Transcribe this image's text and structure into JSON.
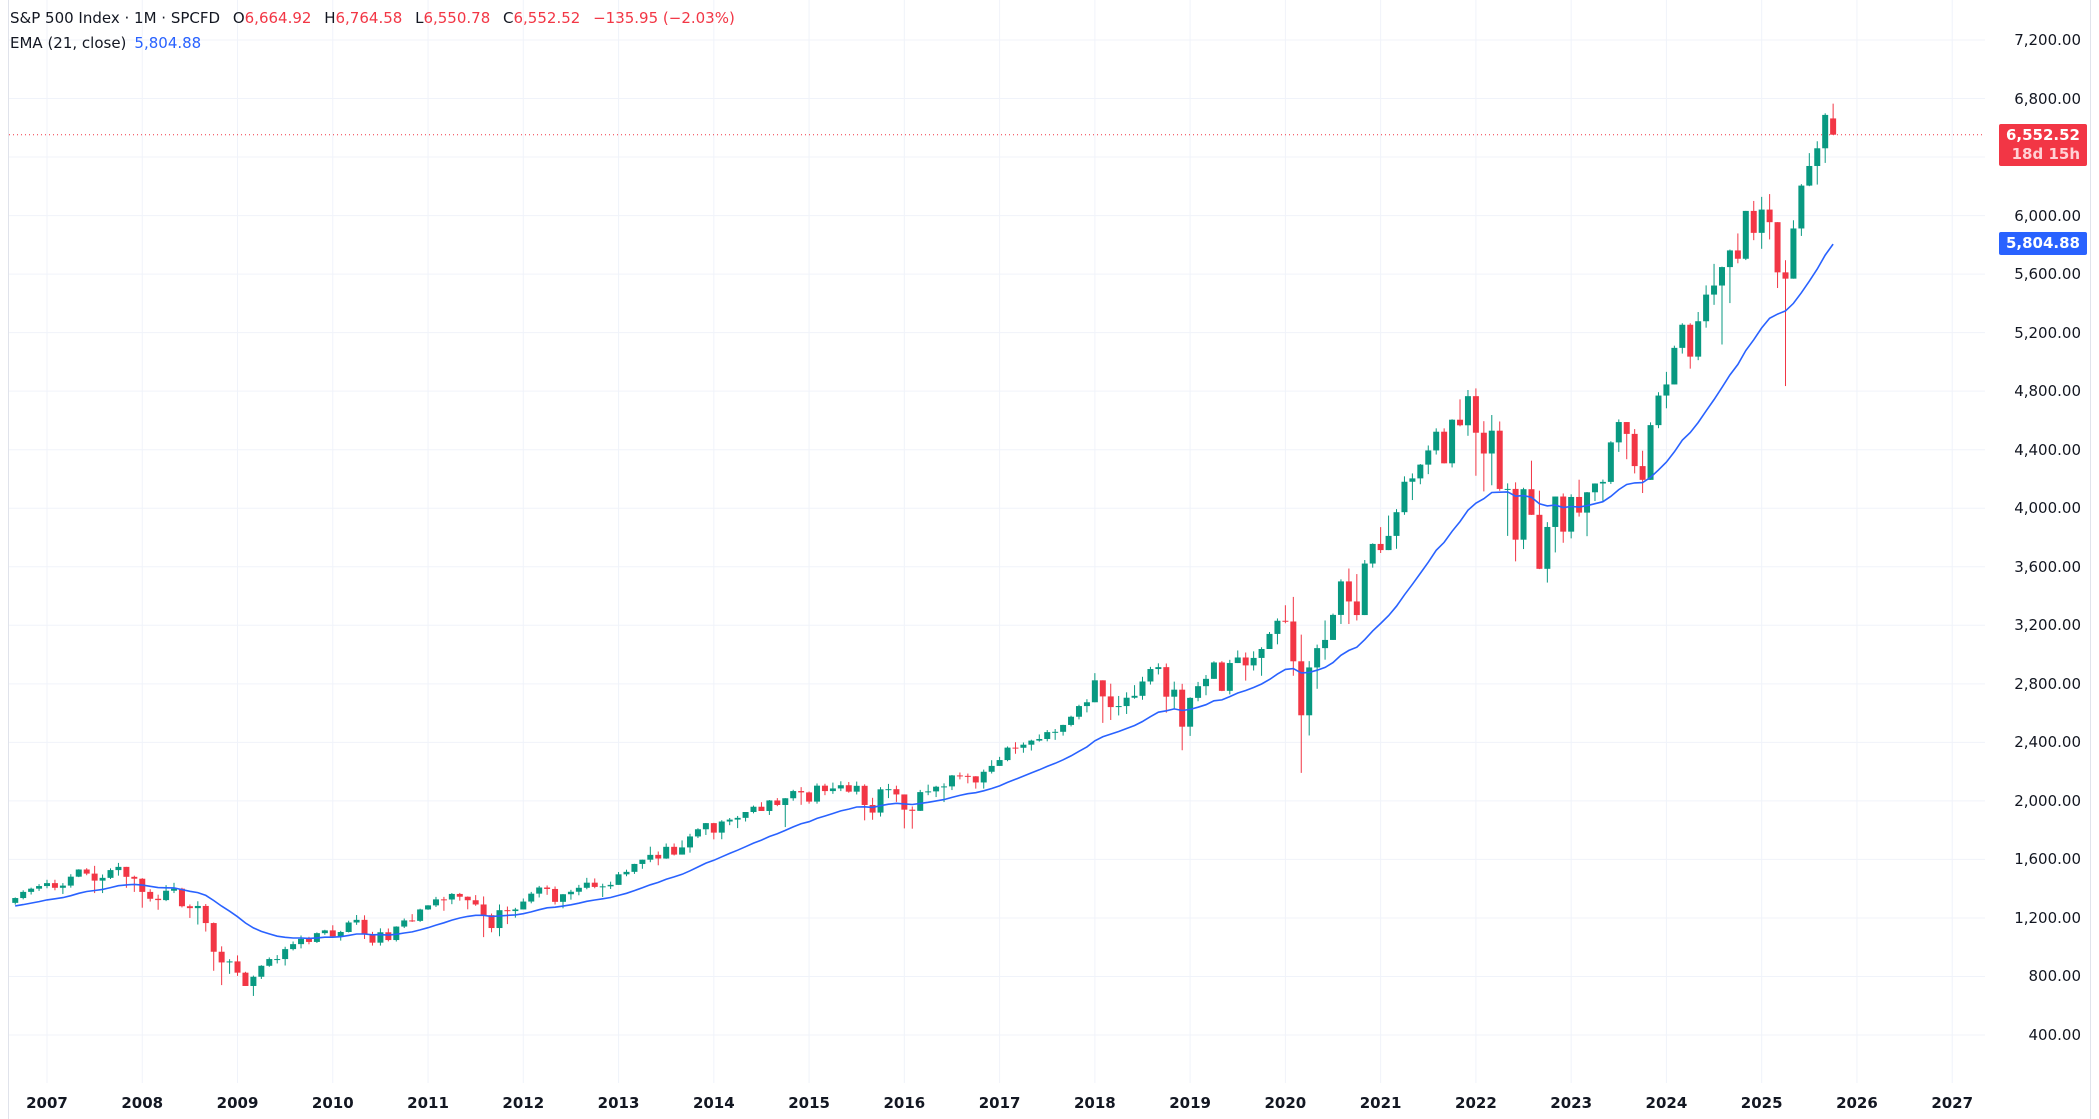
{
  "legend": {
    "symbol": "S&P 500 Index · 1M · SPCFD",
    "open_label": "O",
    "open": "6,664.92",
    "high_label": "H",
    "high": "6,764.58",
    "low_label": "L",
    "low": "6,550.78",
    "close_label": "C",
    "close": "6,552.52",
    "change": "−135.95 (−2.03%)",
    "ema_label": "EMA (21, close)",
    "ema_value": "5,804.88"
  },
  "badges": {
    "last_price": "6,552.52",
    "countdown": "18d 15h",
    "ema_price": "5,804.88"
  },
  "colors": {
    "up": "#089981",
    "down": "#f23645",
    "ema": "#2962ff",
    "grid": "#f0f3fa",
    "text": "#131722"
  },
  "chart_data": {
    "type": "candlestick",
    "title": "S&P 500 Index · 1M · SPCFD",
    "xlabel": "",
    "ylabel": "",
    "ylim": [
      400,
      7200
    ],
    "grid": true,
    "y_ticks": [
      "7,200.00",
      "6,800.00",
      "6,000.00",
      "5,600.00",
      "5,200.00",
      "4,800.00",
      "4,400.00",
      "4,000.00",
      "3,600.00",
      "3,200.00",
      "2,800.00",
      "2,400.00",
      "2,000.00",
      "1,600.00",
      "1,200.00",
      "800.00",
      "400.00"
    ],
    "x_ticks": [
      "2007",
      "2008",
      "2009",
      "2010",
      "2011",
      "2012",
      "2013",
      "2014",
      "2015",
      "2016",
      "2017",
      "2018",
      "2019",
      "2020",
      "2021",
      "2022",
      "2023",
      "2024",
      "2025",
      "2026",
      "2027"
    ],
    "start": "2006-09",
    "interval": "1M",
    "ohlc": [
      [
        1303,
        1340,
        1291,
        1336
      ],
      [
        1336,
        1389,
        1327,
        1378
      ],
      [
        1378,
        1407,
        1360,
        1400
      ],
      [
        1400,
        1431,
        1385,
        1418
      ],
      [
        1418,
        1461,
        1403,
        1438
      ],
      [
        1438,
        1461,
        1389,
        1406
      ],
      [
        1406,
        1438,
        1364,
        1421
      ],
      [
        1421,
        1499,
        1407,
        1482
      ],
      [
        1482,
        1533,
        1479,
        1531
      ],
      [
        1531,
        1540,
        1492,
        1503
      ],
      [
        1503,
        1556,
        1370,
        1455
      ],
      [
        1455,
        1497,
        1370,
        1474
      ],
      [
        1474,
        1539,
        1466,
        1527
      ],
      [
        1527,
        1576,
        1489,
        1549
      ],
      [
        1549,
        1545,
        1406,
        1481
      ],
      [
        1481,
        1489,
        1378,
        1468
      ],
      [
        1468,
        1472,
        1270,
        1378
      ],
      [
        1378,
        1396,
        1312,
        1331
      ],
      [
        1331,
        1359,
        1256,
        1322
      ],
      [
        1322,
        1424,
        1315,
        1386
      ],
      [
        1386,
        1440,
        1370,
        1400
      ],
      [
        1400,
        1406,
        1272,
        1280
      ],
      [
        1280,
        1292,
        1200,
        1267
      ],
      [
        1267,
        1314,
        1155,
        1282
      ],
      [
        1282,
        1295,
        1107,
        1165
      ],
      [
        1165,
        1169,
        839,
        969
      ],
      [
        969,
        1006,
        741,
        896
      ],
      [
        896,
        918,
        818,
        903
      ],
      [
        903,
        944,
        804,
        826
      ],
      [
        826,
        832,
        735,
        735
      ],
      [
        735,
        806,
        667,
        798
      ],
      [
        798,
        877,
        783,
        873
      ],
      [
        873,
        930,
        866,
        919
      ],
      [
        919,
        946,
        889,
        919
      ],
      [
        919,
        1003,
        875,
        987
      ],
      [
        987,
        1039,
        978,
        1021
      ],
      [
        1021,
        1080,
        992,
        1057
      ],
      [
        1057,
        1071,
        1020,
        1036
      ],
      [
        1036,
        1101,
        1029,
        1096
      ],
      [
        1096,
        1119,
        1085,
        1115
      ],
      [
        1115,
        1150,
        1071,
        1074
      ],
      [
        1074,
        1112,
        1045,
        1104
      ],
      [
        1104,
        1181,
        1101,
        1169
      ],
      [
        1169,
        1220,
        1153,
        1187
      ],
      [
        1187,
        1218,
        1056,
        1089
      ],
      [
        1089,
        1105,
        1011,
        1031
      ],
      [
        1031,
        1129,
        1011,
        1102
      ],
      [
        1102,
        1128,
        1040,
        1049
      ],
      [
        1049,
        1143,
        1039,
        1141
      ],
      [
        1141,
        1196,
        1131,
        1183
      ],
      [
        1183,
        1226,
        1173,
        1180
      ],
      [
        1180,
        1263,
        1173,
        1258
      ],
      [
        1258,
        1287,
        1255,
        1286
      ],
      [
        1286,
        1344,
        1275,
        1327
      ],
      [
        1327,
        1344,
        1249,
        1326
      ],
      [
        1326,
        1370,
        1294,
        1364
      ],
      [
        1364,
        1371,
        1318,
        1345
      ],
      [
        1345,
        1347,
        1259,
        1321
      ],
      [
        1321,
        1356,
        1283,
        1292
      ],
      [
        1292,
        1347,
        1069,
        1219
      ],
      [
        1219,
        1230,
        1102,
        1131
      ],
      [
        1131,
        1292,
        1075,
        1253
      ],
      [
        1253,
        1278,
        1158,
        1247
      ],
      [
        1247,
        1269,
        1202,
        1258
      ],
      [
        1258,
        1333,
        1258,
        1312
      ],
      [
        1312,
        1378,
        1300,
        1366
      ],
      [
        1366,
        1419,
        1340,
        1408
      ],
      [
        1408,
        1422,
        1358,
        1398
      ],
      [
        1398,
        1415,
        1292,
        1310
      ],
      [
        1310,
        1363,
        1266,
        1362
      ],
      [
        1362,
        1392,
        1325,
        1379
      ],
      [
        1379,
        1426,
        1355,
        1406
      ],
      [
        1406,
        1474,
        1396,
        1441
      ],
      [
        1441,
        1470,
        1403,
        1412
      ],
      [
        1412,
        1434,
        1343,
        1416
      ],
      [
        1416,
        1448,
        1398,
        1426
      ],
      [
        1426,
        1514,
        1426,
        1498
      ],
      [
        1498,
        1530,
        1485,
        1515
      ],
      [
        1515,
        1570,
        1501,
        1569
      ],
      [
        1569,
        1598,
        1536,
        1598
      ],
      [
        1598,
        1687,
        1581,
        1631
      ],
      [
        1631,
        1654,
        1560,
        1606
      ],
      [
        1606,
        1709,
        1604,
        1686
      ],
      [
        1686,
        1709,
        1627,
        1633
      ],
      [
        1633,
        1730,
        1633,
        1682
      ],
      [
        1682,
        1775,
        1646,
        1757
      ],
      [
        1757,
        1813,
        1746,
        1806
      ],
      [
        1806,
        1849,
        1767,
        1848
      ],
      [
        1848,
        1850,
        1737,
        1783
      ],
      [
        1783,
        1868,
        1738,
        1859
      ],
      [
        1859,
        1883,
        1834,
        1872
      ],
      [
        1872,
        1897,
        1814,
        1884
      ],
      [
        1884,
        1924,
        1859,
        1924
      ],
      [
        1924,
        1968,
        1915,
        1960
      ],
      [
        1960,
        1991,
        1931,
        1931
      ],
      [
        1931,
        2006,
        1904,
        2003
      ],
      [
        2003,
        2019,
        1964,
        1972
      ],
      [
        1972,
        2019,
        1821,
        2018
      ],
      [
        2018,
        2076,
        2001,
        2067
      ],
      [
        2067,
        2094,
        1973,
        2058
      ],
      [
        2058,
        2064,
        1981,
        1995
      ],
      [
        1995,
        2119,
        1981,
        2104
      ],
      [
        2104,
        2117,
        2039,
        2067
      ],
      [
        2067,
        2125,
        2048,
        2085
      ],
      [
        2085,
        2134,
        2067,
        2107
      ],
      [
        2107,
        2129,
        2056,
        2063
      ],
      [
        2063,
        2132,
        2044,
        2103
      ],
      [
        2103,
        2113,
        1867,
        1972
      ],
      [
        1972,
        2021,
        1871,
        1920
      ],
      [
        1920,
        2094,
        1893,
        2079
      ],
      [
        2079,
        2116,
        2019,
        2080
      ],
      [
        2080,
        2104,
        1993,
        2044
      ],
      [
        2044,
        2038,
        1812,
        1940
      ],
      [
        1940,
        1962,
        1810,
        1932
      ],
      [
        1932,
        2075,
        1931,
        2060
      ],
      [
        2060,
        2111,
        2039,
        2065
      ],
      [
        2065,
        2103,
        2026,
        2097
      ],
      [
        2097,
        2120,
        1992,
        2099
      ],
      [
        2099,
        2177,
        2074,
        2174
      ],
      [
        2174,
        2194,
        2147,
        2171
      ],
      [
        2171,
        2187,
        2120,
        2168
      ],
      [
        2168,
        2169,
        2084,
        2126
      ],
      [
        2126,
        2214,
        2084,
        2199
      ],
      [
        2199,
        2278,
        2187,
        2239
      ],
      [
        2239,
        2301,
        2245,
        2279
      ],
      [
        2279,
        2372,
        2271,
        2364
      ],
      [
        2364,
        2401,
        2322,
        2363
      ],
      [
        2363,
        2399,
        2329,
        2384
      ],
      [
        2384,
        2418,
        2344,
        2412
      ],
      [
        2412,
        2454,
        2405,
        2423
      ],
      [
        2423,
        2484,
        2407,
        2470
      ],
      [
        2470,
        2491,
        2417,
        2472
      ],
      [
        2472,
        2520,
        2446,
        2519
      ],
      [
        2519,
        2582,
        2509,
        2575
      ],
      [
        2575,
        2657,
        2557,
        2648
      ],
      [
        2648,
        2695,
        2605,
        2674
      ],
      [
        2674,
        2873,
        2674,
        2824
      ],
      [
        2824,
        2790,
        2533,
        2714
      ],
      [
        2714,
        2801,
        2553,
        2641
      ],
      [
        2641,
        2717,
        2584,
        2648
      ],
      [
        2648,
        2742,
        2594,
        2705
      ],
      [
        2705,
        2791,
        2698,
        2718
      ],
      [
        2718,
        2848,
        2691,
        2816
      ],
      [
        2816,
        2916,
        2795,
        2901
      ],
      [
        2901,
        2940,
        2864,
        2914
      ],
      [
        2914,
        2939,
        2603,
        2712
      ],
      [
        2712,
        2815,
        2631,
        2760
      ],
      [
        2760,
        2800,
        2346,
        2507
      ],
      [
        2507,
        2708,
        2444,
        2704
      ],
      [
        2704,
        2813,
        2681,
        2784
      ],
      [
        2784,
        2860,
        2722,
        2834
      ],
      [
        2834,
        2954,
        2848,
        2946
      ],
      [
        2946,
        2955,
        2750,
        2752
      ],
      [
        2752,
        2964,
        2728,
        2942
      ],
      [
        2942,
        3028,
        2951,
        2980
      ],
      [
        2980,
        3014,
        2822,
        2926
      ],
      [
        2926,
        3022,
        2891,
        2977
      ],
      [
        2977,
        3050,
        2855,
        3038
      ],
      [
        3038,
        3154,
        3050,
        3141
      ],
      [
        3141,
        3247,
        3070,
        3231
      ],
      [
        3231,
        3337,
        3214,
        3226
      ],
      [
        3226,
        3394,
        2855,
        2954
      ],
      [
        2954,
        3136,
        2191,
        2585
      ],
      [
        2585,
        2955,
        2447,
        2912
      ],
      [
        2912,
        3068,
        2766,
        3044
      ],
      [
        3044,
        3233,
        2965,
        3100
      ],
      [
        3100,
        3280,
        3115,
        3271
      ],
      [
        3271,
        3514,
        3209,
        3500
      ],
      [
        3500,
        3588,
        3209,
        3363
      ],
      [
        3363,
        3550,
        3233,
        3270
      ],
      [
        3270,
        3646,
        3279,
        3622
      ],
      [
        3622,
        3760,
        3594,
        3756
      ],
      [
        3756,
        3871,
        3694,
        3714
      ],
      [
        3714,
        3950,
        3726,
        3811
      ],
      [
        3811,
        3994,
        3723,
        3973
      ],
      [
        3973,
        4218,
        3955,
        4181
      ],
      [
        4181,
        4238,
        4056,
        4204
      ],
      [
        4204,
        4302,
        4164,
        4298
      ],
      [
        4298,
        4429,
        4233,
        4395
      ],
      [
        4395,
        4546,
        4367,
        4523
      ],
      [
        4523,
        4546,
        4306,
        4307
      ],
      [
        4307,
        4608,
        4279,
        4605
      ],
      [
        4605,
        4744,
        4560,
        4567
      ],
      [
        4567,
        4808,
        4495,
        4766
      ],
      [
        4766,
        4819,
        4222,
        4516
      ],
      [
        4516,
        4595,
        4115,
        4374
      ],
      [
        4374,
        4637,
        4157,
        4530
      ],
      [
        4530,
        4593,
        4119,
        4132
      ],
      [
        4132,
        4170,
        3811,
        4132
      ],
      [
        4132,
        4177,
        3637,
        3785
      ],
      [
        3785,
        4140,
        3721,
        4130
      ],
      [
        4130,
        4325,
        3954,
        3955
      ],
      [
        3955,
        4120,
        3584,
        3586
      ],
      [
        3586,
        3905,
        3492,
        3872
      ],
      [
        3872,
        4080,
        3698,
        4080
      ],
      [
        4080,
        4101,
        3764,
        3840
      ],
      [
        3840,
        4095,
        3794,
        4077
      ],
      [
        4077,
        4195,
        3943,
        3970
      ],
      [
        3970,
        4111,
        3809,
        4109
      ],
      [
        4109,
        4170,
        4049,
        4169
      ],
      [
        4169,
        4196,
        4048,
        4180
      ],
      [
        4180,
        4458,
        4166,
        4450
      ],
      [
        4450,
        4607,
        4385,
        4589
      ],
      [
        4589,
        4531,
        4335,
        4508
      ],
      [
        4508,
        4541,
        4238,
        4288
      ],
      [
        4288,
        4393,
        4104,
        4194
      ],
      [
        4194,
        4587,
        4197,
        4568
      ],
      [
        4568,
        4793,
        4547,
        4770
      ],
      [
        4770,
        4932,
        4683,
        4846
      ],
      [
        4846,
        5111,
        4854,
        5096
      ],
      [
        5096,
        5264,
        5057,
        5254
      ],
      [
        5254,
        5264,
        4954,
        5036
      ],
      [
        5036,
        5341,
        5012,
        5278
      ],
      [
        5278,
        5523,
        5234,
        5460
      ],
      [
        5460,
        5670,
        5390,
        5522
      ],
      [
        5522,
        5651,
        5119,
        5648
      ],
      [
        5648,
        5768,
        5402,
        5762
      ],
      [
        5762,
        5878,
        5674,
        5705
      ],
      [
        5705,
        6018,
        5696,
        6032
      ],
      [
        6032,
        6100,
        5832,
        5882
      ],
      [
        5882,
        6128,
        5773,
        6041
      ],
      [
        6041,
        6147,
        5837,
        5955
      ],
      [
        5955,
        5787,
        5505,
        5612
      ],
      [
        5612,
        5695,
        4835,
        5569
      ],
      [
        5569,
        5968,
        5578,
        5912
      ],
      [
        5912,
        6215,
        5861,
        6205
      ],
      [
        6205,
        6427,
        6201,
        6339
      ],
      [
        6339,
        6508,
        6212,
        6460
      ],
      [
        6460,
        6699,
        6360,
        6688
      ],
      [
        6664,
        6765,
        6551,
        6553
      ]
    ],
    "ema_21_last": 5804.88,
    "last_close": 6552.52
  }
}
